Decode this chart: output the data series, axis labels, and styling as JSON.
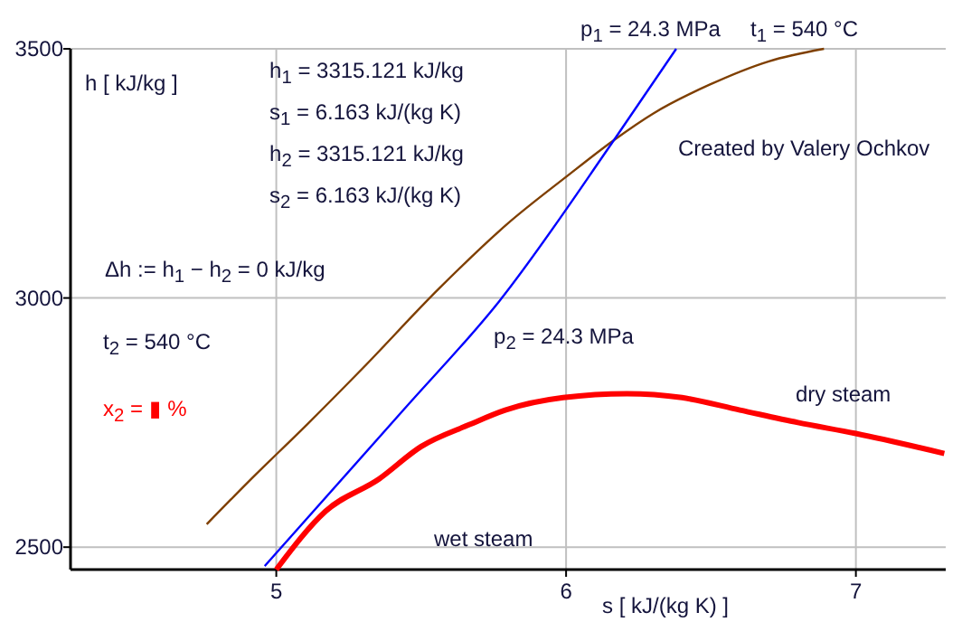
{
  "chart_data": {
    "type": "line",
    "xlabel": "s [ kJ/(kg K) ]",
    "ylabel": "h [ kJ/kg ]",
    "xlim": [
      4.29,
      7.31
    ],
    "ylim": [
      2455,
      3500
    ],
    "xticks": [
      5,
      6,
      7
    ],
    "yticks": [
      2500,
      3000,
      3500
    ],
    "grid": true,
    "marker": "none",
    "line_style": "solid",
    "series": [
      {
        "color": "#7f3f00",
        "x": [
          4.76,
          4.9,
          5.106,
          5.3,
          5.56,
          5.8,
          6.0,
          6.163,
          6.3,
          6.495,
          6.7,
          6.89
        ],
        "values": [
          2546,
          2629,
          2746,
          2860,
          3018,
          3150,
          3243,
          3316,
          3370,
          3428,
          3475,
          3500
        ]
      },
      {
        "color": "#0000ff",
        "x": [
          4.96,
          5.44,
          5.77,
          6.163,
          6.38
        ],
        "values": [
          2462,
          2776,
          2994,
          3315,
          3500
        ]
      },
      {
        "color": "#ff0000",
        "x": [
          5.0,
          5.17,
          5.355,
          5.5,
          5.667,
          5.79,
          5.99,
          6.21,
          6.4,
          6.6,
          6.8,
          7.0,
          7.305
        ],
        "values": [
          2455,
          2572,
          2637,
          2702,
          2746,
          2775,
          2800,
          2808,
          2800,
          2775,
          2750,
          2728,
          2688
        ]
      }
    ],
    "annotations": [
      "h$_{1}$ = 3315.121 kJ/kg",
      "s$_{1}$ = 6.163 kJ/(kg K)",
      "h$_{2}$ = 3315.121 kJ/kg",
      "s$_{2}$ = 6.163 kJ/(kg K)",
      "Δh := h$_{1}$ − h$_{2}$ = 0 kJ/kg",
      "t$_{2}$ = 540 °C",
      "x$_{2}$ = ▮ %",
      "Created by Valery Ochkov",
      "p$_{1}$ = 24.3 MPa",
      "t$_{1}$ = 540 °C",
      "p$_{2}$ = 24.3 MPa",
      "wet steam",
      "dry steam"
    ]
  }
}
